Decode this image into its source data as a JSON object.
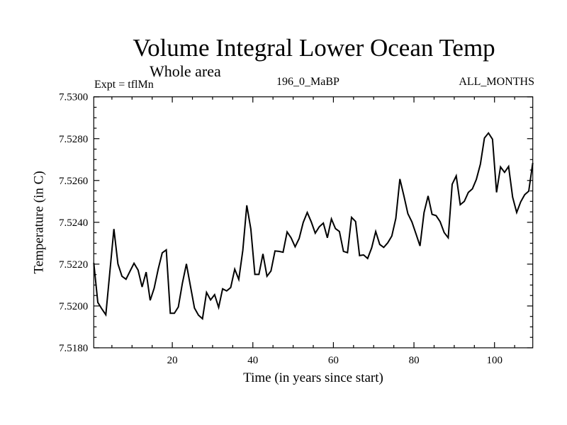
{
  "chart_data": {
    "type": "line",
    "title": "Volume Integral Lower Ocean Temp",
    "subtitle": "Whole area",
    "annotations": {
      "left": "Expt = tflMn",
      "center": "196_0_MaBP",
      "right": "ALL_MONTHS"
    },
    "xlabel": "Time (in years since start)",
    "ylabel": "Temperature (in C)",
    "xlim": [
      0.5,
      109.5
    ],
    "ylim": [
      7.518,
      7.53
    ],
    "x_ticks": [
      20,
      40,
      60,
      80,
      100
    ],
    "x_tick_labels": [
      "20",
      "40",
      "60",
      "80",
      "100"
    ],
    "x_minor_step": 5,
    "y_ticks": [
      7.518,
      7.52,
      7.522,
      7.524,
      7.526,
      7.528,
      7.53
    ],
    "y_tick_labels": [
      "7.5180",
      "7.5200",
      "7.5220",
      "7.5240",
      "7.5260",
      "7.5280",
      "7.5300"
    ],
    "y_minor_step": 0.0005,
    "grid": false,
    "legend": "none",
    "series": [
      {
        "name": "Volume Integral Lower Ocean Temp",
        "color": "#000000",
        "x_start": 0.5,
        "x_step": 1,
        "values": [
          7.52206,
          7.52017,
          7.51986,
          7.51958,
          7.52163,
          7.52368,
          7.52201,
          7.52142,
          7.52128,
          7.52166,
          7.52204,
          7.52172,
          7.52091,
          7.52162,
          7.52027,
          7.52085,
          7.52176,
          7.52254,
          7.52268,
          7.51965,
          7.51965,
          7.51995,
          7.52108,
          7.52201,
          7.52095,
          7.5199,
          7.51956,
          7.51939,
          7.52065,
          7.52029,
          7.52054,
          7.51993,
          7.52082,
          7.52072,
          7.52088,
          7.52176,
          7.52127,
          7.52266,
          7.52481,
          7.52368,
          7.52151,
          7.52151,
          7.52249,
          7.52142,
          7.52167,
          7.52263,
          7.52261,
          7.52257,
          7.52354,
          7.52326,
          7.52283,
          7.52323,
          7.52399,
          7.52447,
          7.52402,
          7.52348,
          7.52379,
          7.52396,
          7.52326,
          7.52416,
          7.5237,
          7.52356,
          7.52261,
          7.52255,
          7.52424,
          7.52404,
          7.52241,
          7.52244,
          7.52227,
          7.52278,
          7.52356,
          7.52294,
          7.5228,
          7.52302,
          7.52334,
          7.52419,
          7.52607,
          7.52526,
          7.52441,
          7.52402,
          7.52345,
          7.52287,
          7.52447,
          7.52526,
          7.52438,
          7.52432,
          7.52403,
          7.52351,
          7.52326,
          7.52582,
          7.52622,
          7.52484,
          7.525,
          7.52543,
          7.5256,
          7.52605,
          7.52678,
          7.52803,
          7.52827,
          7.52797,
          7.52543,
          7.52665,
          7.52639,
          7.52667,
          7.5252,
          7.52447,
          7.52498,
          7.52532,
          7.52549,
          7.52684
        ]
      }
    ]
  }
}
